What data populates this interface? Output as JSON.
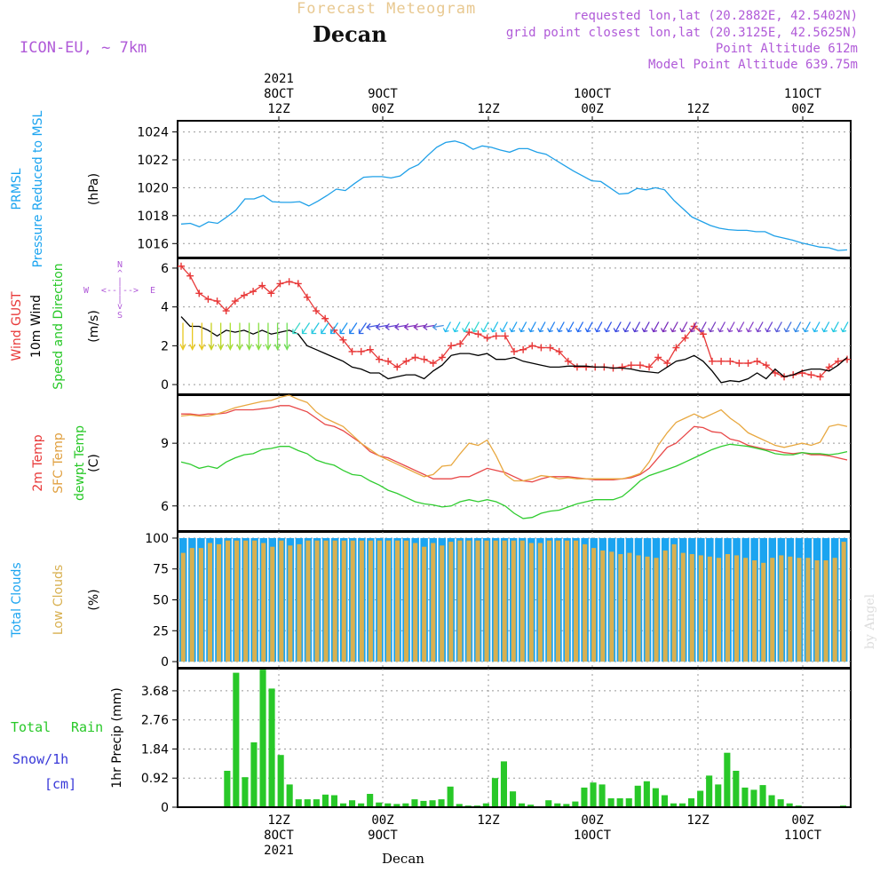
{
  "header": {
    "title": "Forecast Meteogram",
    "station": "Decan",
    "model": "ICON-EU, ~ 7km",
    "requested": "requested lon,lat (20.2882E, 42.5402N)",
    "gridpoint": "grid point closest lon,lat (20.3125E, 42.5625N)",
    "point_alt": "Point Altitude 612m",
    "model_alt": "Model Point Altitude 639.75m",
    "credit": "by Angel",
    "footer_station": "Decan"
  },
  "time_axis": {
    "top_labels": [
      [
        "2021",
        "8OCT",
        "12Z"
      ],
      [
        "",
        "9OCT",
        "00Z"
      ],
      [
        "",
        "",
        "12Z"
      ],
      [
        "",
        "10OCT",
        "00Z"
      ],
      [
        "",
        "",
        "12Z"
      ],
      [
        "",
        "11OCT",
        "00Z"
      ]
    ],
    "bottom_labels": [
      [
        "12Z",
        "8OCT",
        "2021"
      ],
      [
        "00Z",
        "9OCT",
        ""
      ],
      [
        "12Z",
        "",
        ""
      ],
      [
        "00Z",
        "10OCT",
        ""
      ],
      [
        "12Z",
        "",
        ""
      ],
      [
        "00Z",
        "11OCT",
        ""
      ]
    ]
  },
  "chart_data": [
    {
      "type": "line",
      "id": "pressure",
      "ylabel": "(hPa)",
      "left_labels": [
        "PRMSL",
        "Pressure Reduced to MSL"
      ],
      "yticks": [
        1016,
        1018,
        1020,
        1022,
        1024
      ],
      "ylim": [
        1015,
        1024.8
      ],
      "series": [
        {
          "name": "PRMSL",
          "color": "#1fa0e8",
          "values": [
            1017.4,
            1017.45,
            1017.2,
            1017.55,
            1017.45,
            1017.9,
            1018.4,
            1019.2,
            1019.2,
            1019.45,
            1019.0,
            1018.95,
            1018.95,
            1019.0,
            1018.7,
            1019.05,
            1019.45,
            1019.9,
            1019.8,
            1020.3,
            1020.75,
            1020.8,
            1020.8,
            1020.7,
            1020.85,
            1021.35,
            1021.65,
            1022.3,
            1022.9,
            1023.25,
            1023.35,
            1023.15,
            1022.75,
            1023.0,
            1022.9,
            1022.7,
            1022.55,
            1022.8,
            1022.8,
            1022.55,
            1022.4,
            1022.0,
            1021.6,
            1021.2,
            1020.85,
            1020.5,
            1020.45,
            1020.0,
            1019.55,
            1019.6,
            1019.95,
            1019.85,
            1020.0,
            1019.85,
            1019.1,
            1018.5,
            1017.9,
            1017.6,
            1017.3,
            1017.1,
            1017.0,
            1016.95,
            1016.95,
            1016.85,
            1016.85,
            1016.55,
            1016.4,
            1016.25,
            1016.05,
            1015.9,
            1015.75,
            1015.7,
            1015.5,
            1015.55
          ]
        }
      ]
    },
    {
      "type": "line",
      "id": "wind",
      "ylabel": "(m/s)",
      "left_labels": [
        "Wind GUST",
        "10m Wind",
        "Speed and Direction"
      ],
      "compass": {
        "north": "N",
        "south": "S",
        "west": "W",
        "east": "E"
      },
      "yticks": [
        0,
        2,
        4,
        6
      ],
      "ylim": [
        -0.5,
        6.5
      ],
      "series": [
        {
          "name": "Wind GUST",
          "color": "#e83838",
          "values": [
            6.1,
            5.6,
            4.7,
            4.4,
            4.3,
            3.8,
            4.3,
            4.6,
            4.8,
            5.1,
            4.7,
            5.2,
            5.3,
            5.2,
            4.5,
            3.8,
            3.4,
            2.8,
            2.3,
            1.7,
            1.7,
            1.8,
            1.3,
            1.2,
            0.9,
            1.2,
            1.4,
            1.3,
            1.1,
            1.4,
            2.0,
            2.1,
            2.7,
            2.6,
            2.4,
            2.5,
            2.5,
            1.7,
            1.8,
            2.0,
            1.9,
            1.9,
            1.7,
            1.2,
            0.9,
            0.9,
            0.9,
            0.9,
            0.85,
            0.9,
            1.0,
            1.0,
            0.9,
            1.4,
            1.1,
            1.9,
            2.4,
            3.0,
            2.6,
            1.2,
            1.2,
            1.2,
            1.1,
            1.1,
            1.2,
            1.0,
            0.6,
            0.4,
            0.5,
            0.6,
            0.5,
            0.4,
            0.9,
            1.2,
            1.3
          ]
        },
        {
          "name": "10m Wind",
          "color": "#000000",
          "values": [
            3.5,
            3.0,
            3.0,
            2.8,
            2.5,
            2.8,
            2.7,
            2.8,
            2.6,
            2.8,
            2.6,
            2.7,
            2.8,
            2.6,
            2.0,
            1.8,
            1.6,
            1.4,
            1.2,
            0.9,
            0.8,
            0.6,
            0.6,
            0.3,
            0.4,
            0.5,
            0.5,
            0.3,
            0.7,
            1.0,
            1.5,
            1.6,
            1.6,
            1.5,
            1.6,
            1.3,
            1.3,
            1.4,
            1.2,
            1.1,
            1.0,
            0.9,
            0.9,
            0.95,
            0.95,
            0.95,
            0.9,
            0.9,
            0.85,
            0.85,
            0.8,
            0.7,
            0.65,
            0.6,
            0.9,
            1.2,
            1.3,
            1.5,
            1.2,
            0.7,
            0.1,
            0.2,
            0.15,
            0.3,
            0.6,
            0.3,
            0.8,
            0.4,
            0.5,
            0.7,
            0.8,
            0.8,
            0.7,
            1.0,
            1.4
          ]
        }
      ],
      "barbs": {
        "row_value": 3.0,
        "colors": [
          "#e8c820",
          "#e8c820",
          "#e8c820",
          "#c8d020",
          "#b8d828",
          "#a8e030",
          "#98e038",
          "#88e040",
          "#88e040",
          "#80e048",
          "#78e050",
          "#70e058",
          "#40d8c8",
          "#30d0d8",
          "#28c8e0",
          "#20c0e8",
          "#20b0f0",
          "#2098f0",
          "#2080f0",
          "#3068e8",
          "#4058e0",
          "#5048d8",
          "#6040d0",
          "#7038c8",
          "#8030c0",
          "#8830b8",
          "#7838c0",
          "#4890e0",
          "#20b8f0",
          "#20c8e8",
          "#28d0d8",
          "#30d8d0",
          "#28d0e0",
          "#20c0e8",
          "#20b0f0",
          "#20a0f0",
          "#2098f0",
          "#2090f0",
          "#2088f0",
          "#2080f0",
          "#2078f0",
          "#2070f0",
          "#2068f0",
          "#2060f0",
          "#2858f0",
          "#3050e8",
          "#3848e0",
          "#4040d8",
          "#5038d0",
          "#6030c8",
          "#7028c0",
          "#7828b8",
          "#8030b8",
          "#8030b8",
          "#8030b8",
          "#7838c0",
          "#7840c0",
          "#8040c8",
          "#8840c8",
          "#8840c8",
          "#8840c8",
          "#7840c8",
          "#6840d0",
          "#5858d8",
          "#4070e0",
          "#3088e8",
          "#20a0f0",
          "#20b8f0",
          "#20c0e8",
          "#20c8e0",
          "#20c8e0"
        ]
      }
    },
    {
      "type": "line",
      "id": "temperature",
      "ylabel": "(C)",
      "left_labels": [
        "2m Temp",
        "SFC Temp",
        "dewpt Temp"
      ],
      "yticks": [
        6,
        9
      ],
      "ylim": [
        4.8,
        11.3
      ],
      "series": [
        {
          "name": "2m Temp",
          "color": "#e84848",
          "values": [
            10.4,
            10.4,
            10.35,
            10.4,
            10.4,
            10.45,
            10.6,
            10.6,
            10.6,
            10.65,
            10.7,
            10.8,
            10.8,
            10.65,
            10.5,
            10.2,
            9.9,
            9.8,
            9.6,
            9.3,
            9.0,
            8.6,
            8.4,
            8.3,
            8.1,
            7.9,
            7.7,
            7.5,
            7.3,
            7.3,
            7.3,
            7.4,
            7.4,
            7.6,
            7.8,
            7.7,
            7.6,
            7.4,
            7.2,
            7.15,
            7.3,
            7.4,
            7.4,
            7.4,
            7.35,
            7.3,
            7.25,
            7.25,
            7.25,
            7.3,
            7.35,
            7.5,
            7.8,
            8.3,
            8.8,
            9.0,
            9.4,
            9.8,
            9.75,
            9.55,
            9.5,
            9.2,
            9.1,
            8.9,
            8.8,
            8.7,
            8.65,
            8.55,
            8.5,
            8.55,
            8.45,
            8.45,
            8.4,
            8.3,
            8.2
          ]
        },
        {
          "name": "SFC Temp",
          "color": "#e8a840",
          "values": [
            10.3,
            10.35,
            10.3,
            10.3,
            10.4,
            10.55,
            10.7,
            10.8,
            10.9,
            11.0,
            11.05,
            11.2,
            11.3,
            11.1,
            10.95,
            10.5,
            10.2,
            10.0,
            9.8,
            9.4,
            9.0,
            8.7,
            8.4,
            8.2,
            8.0,
            7.8,
            7.6,
            7.4,
            7.5,
            7.9,
            7.95,
            8.5,
            9.0,
            8.9,
            9.15,
            8.4,
            7.5,
            7.2,
            7.2,
            7.3,
            7.45,
            7.4,
            7.3,
            7.35,
            7.3,
            7.3,
            7.3,
            7.3,
            7.3,
            7.3,
            7.4,
            7.55,
            8.1,
            8.9,
            9.5,
            10.0,
            10.2,
            10.4,
            10.2,
            10.4,
            10.6,
            10.2,
            9.9,
            9.5,
            9.3,
            9.1,
            8.9,
            8.8,
            8.9,
            9.0,
            8.9,
            9.05,
            9.8,
            9.9,
            9.8
          ]
        },
        {
          "name": "dewpt Temp",
          "color": "#30cc30",
          "values": [
            8.1,
            8.0,
            7.8,
            7.9,
            7.8,
            8.1,
            8.3,
            8.45,
            8.5,
            8.7,
            8.75,
            8.85,
            8.85,
            8.65,
            8.5,
            8.2,
            8.05,
            7.95,
            7.7,
            7.5,
            7.45,
            7.2,
            7.0,
            6.75,
            6.6,
            6.4,
            6.2,
            6.1,
            6.05,
            5.95,
            6.0,
            6.2,
            6.3,
            6.2,
            6.3,
            6.2,
            6.0,
            5.65,
            5.4,
            5.45,
            5.65,
            5.75,
            5.8,
            5.95,
            6.1,
            6.2,
            6.3,
            6.3,
            6.3,
            6.45,
            6.8,
            7.2,
            7.45,
            7.6,
            7.75,
            7.9,
            8.1,
            8.3,
            8.5,
            8.7,
            8.85,
            8.95,
            8.9,
            8.85,
            8.75,
            8.65,
            8.5,
            8.45,
            8.45,
            8.55,
            8.5,
            8.5,
            8.45,
            8.5,
            8.6
          ]
        }
      ]
    },
    {
      "type": "bar",
      "id": "clouds",
      "ylabel": "(%)",
      "left_labels": [
        "Total Clouds",
        "Low Clouds"
      ],
      "yticks": [
        0,
        25,
        50,
        75,
        100
      ],
      "ylim": [
        -5,
        105
      ],
      "series": [
        {
          "name": "Total Clouds",
          "color": "#1ba4f0",
          "values": [
            100,
            100,
            100,
            100,
            100,
            100,
            100,
            100,
            100,
            100,
            100,
            100,
            100,
            100,
            100,
            100,
            100,
            100,
            100,
            100,
            100,
            100,
            100,
            100,
            100,
            100,
            100,
            100,
            100,
            100,
            100,
            100,
            100,
            100,
            100,
            100,
            100,
            100,
            100,
            100,
            100,
            100,
            100,
            100,
            100,
            100,
            100,
            100,
            100,
            100,
            100,
            100,
            100,
            100,
            100,
            100,
            100,
            100,
            100,
            100,
            100,
            100,
            100,
            100,
            100,
            100,
            100,
            100,
            100,
            100,
            100,
            100,
            100,
            100,
            100
          ]
        },
        {
          "name": "Low Clouds",
          "color": "#d8b050",
          "values": [
            88,
            92,
            92,
            96,
            95,
            98,
            98,
            98,
            98,
            96,
            93,
            98,
            94,
            95,
            98,
            98,
            98,
            98,
            98,
            98,
            98,
            98,
            98,
            98,
            98,
            98,
            96,
            93,
            96,
            94,
            97,
            98,
            98,
            98,
            98,
            98,
            98,
            98,
            98,
            96,
            96,
            98,
            98,
            98,
            98,
            95,
            92,
            90,
            89,
            87,
            88,
            86,
            85,
            84,
            90,
            95,
            88,
            87,
            86,
            85,
            84,
            87,
            86,
            84,
            82,
            80,
            84,
            86,
            85,
            84,
            84,
            82,
            82,
            84,
            97
          ]
        }
      ]
    },
    {
      "type": "bar",
      "id": "precip",
      "ylabel": "1hr Precip (mm)",
      "left_labels": [
        "Total",
        "Rain",
        "Snow/1h",
        "[cm]"
      ],
      "yticks": [
        0,
        0.92,
        1.84,
        2.76,
        3.68
      ],
      "ylim": [
        0,
        4.38
      ],
      "series": [
        {
          "name": "Total Rain",
          "color": "#28c828",
          "values": [
            0,
            0,
            0,
            0,
            0,
            1.15,
            4.25,
            0.95,
            2.05,
            4.35,
            3.75,
            1.65,
            0.72,
            0.25,
            0.25,
            0.25,
            0.4,
            0.38,
            0.12,
            0.22,
            0.12,
            0.42,
            0.15,
            0.12,
            0.1,
            0.12,
            0.25,
            0.2,
            0.22,
            0.25,
            0.65,
            0.1,
            0.05,
            0.05,
            0.12,
            0.92,
            1.45,
            0.5,
            0.12,
            0.08,
            0.02,
            0.22,
            0.12,
            0.1,
            0.18,
            0.62,
            0.78,
            0.72,
            0.28,
            0.28,
            0.28,
            0.68,
            0.82,
            0.6,
            0.38,
            0.12,
            0.12,
            0.28,
            0.52,
            1.0,
            0.72,
            1.72,
            1.15,
            0.62,
            0.55,
            0.7,
            0.38,
            0.25,
            0.12,
            0.05,
            0,
            0,
            0,
            0.02,
            0.05
          ]
        }
      ]
    }
  ]
}
